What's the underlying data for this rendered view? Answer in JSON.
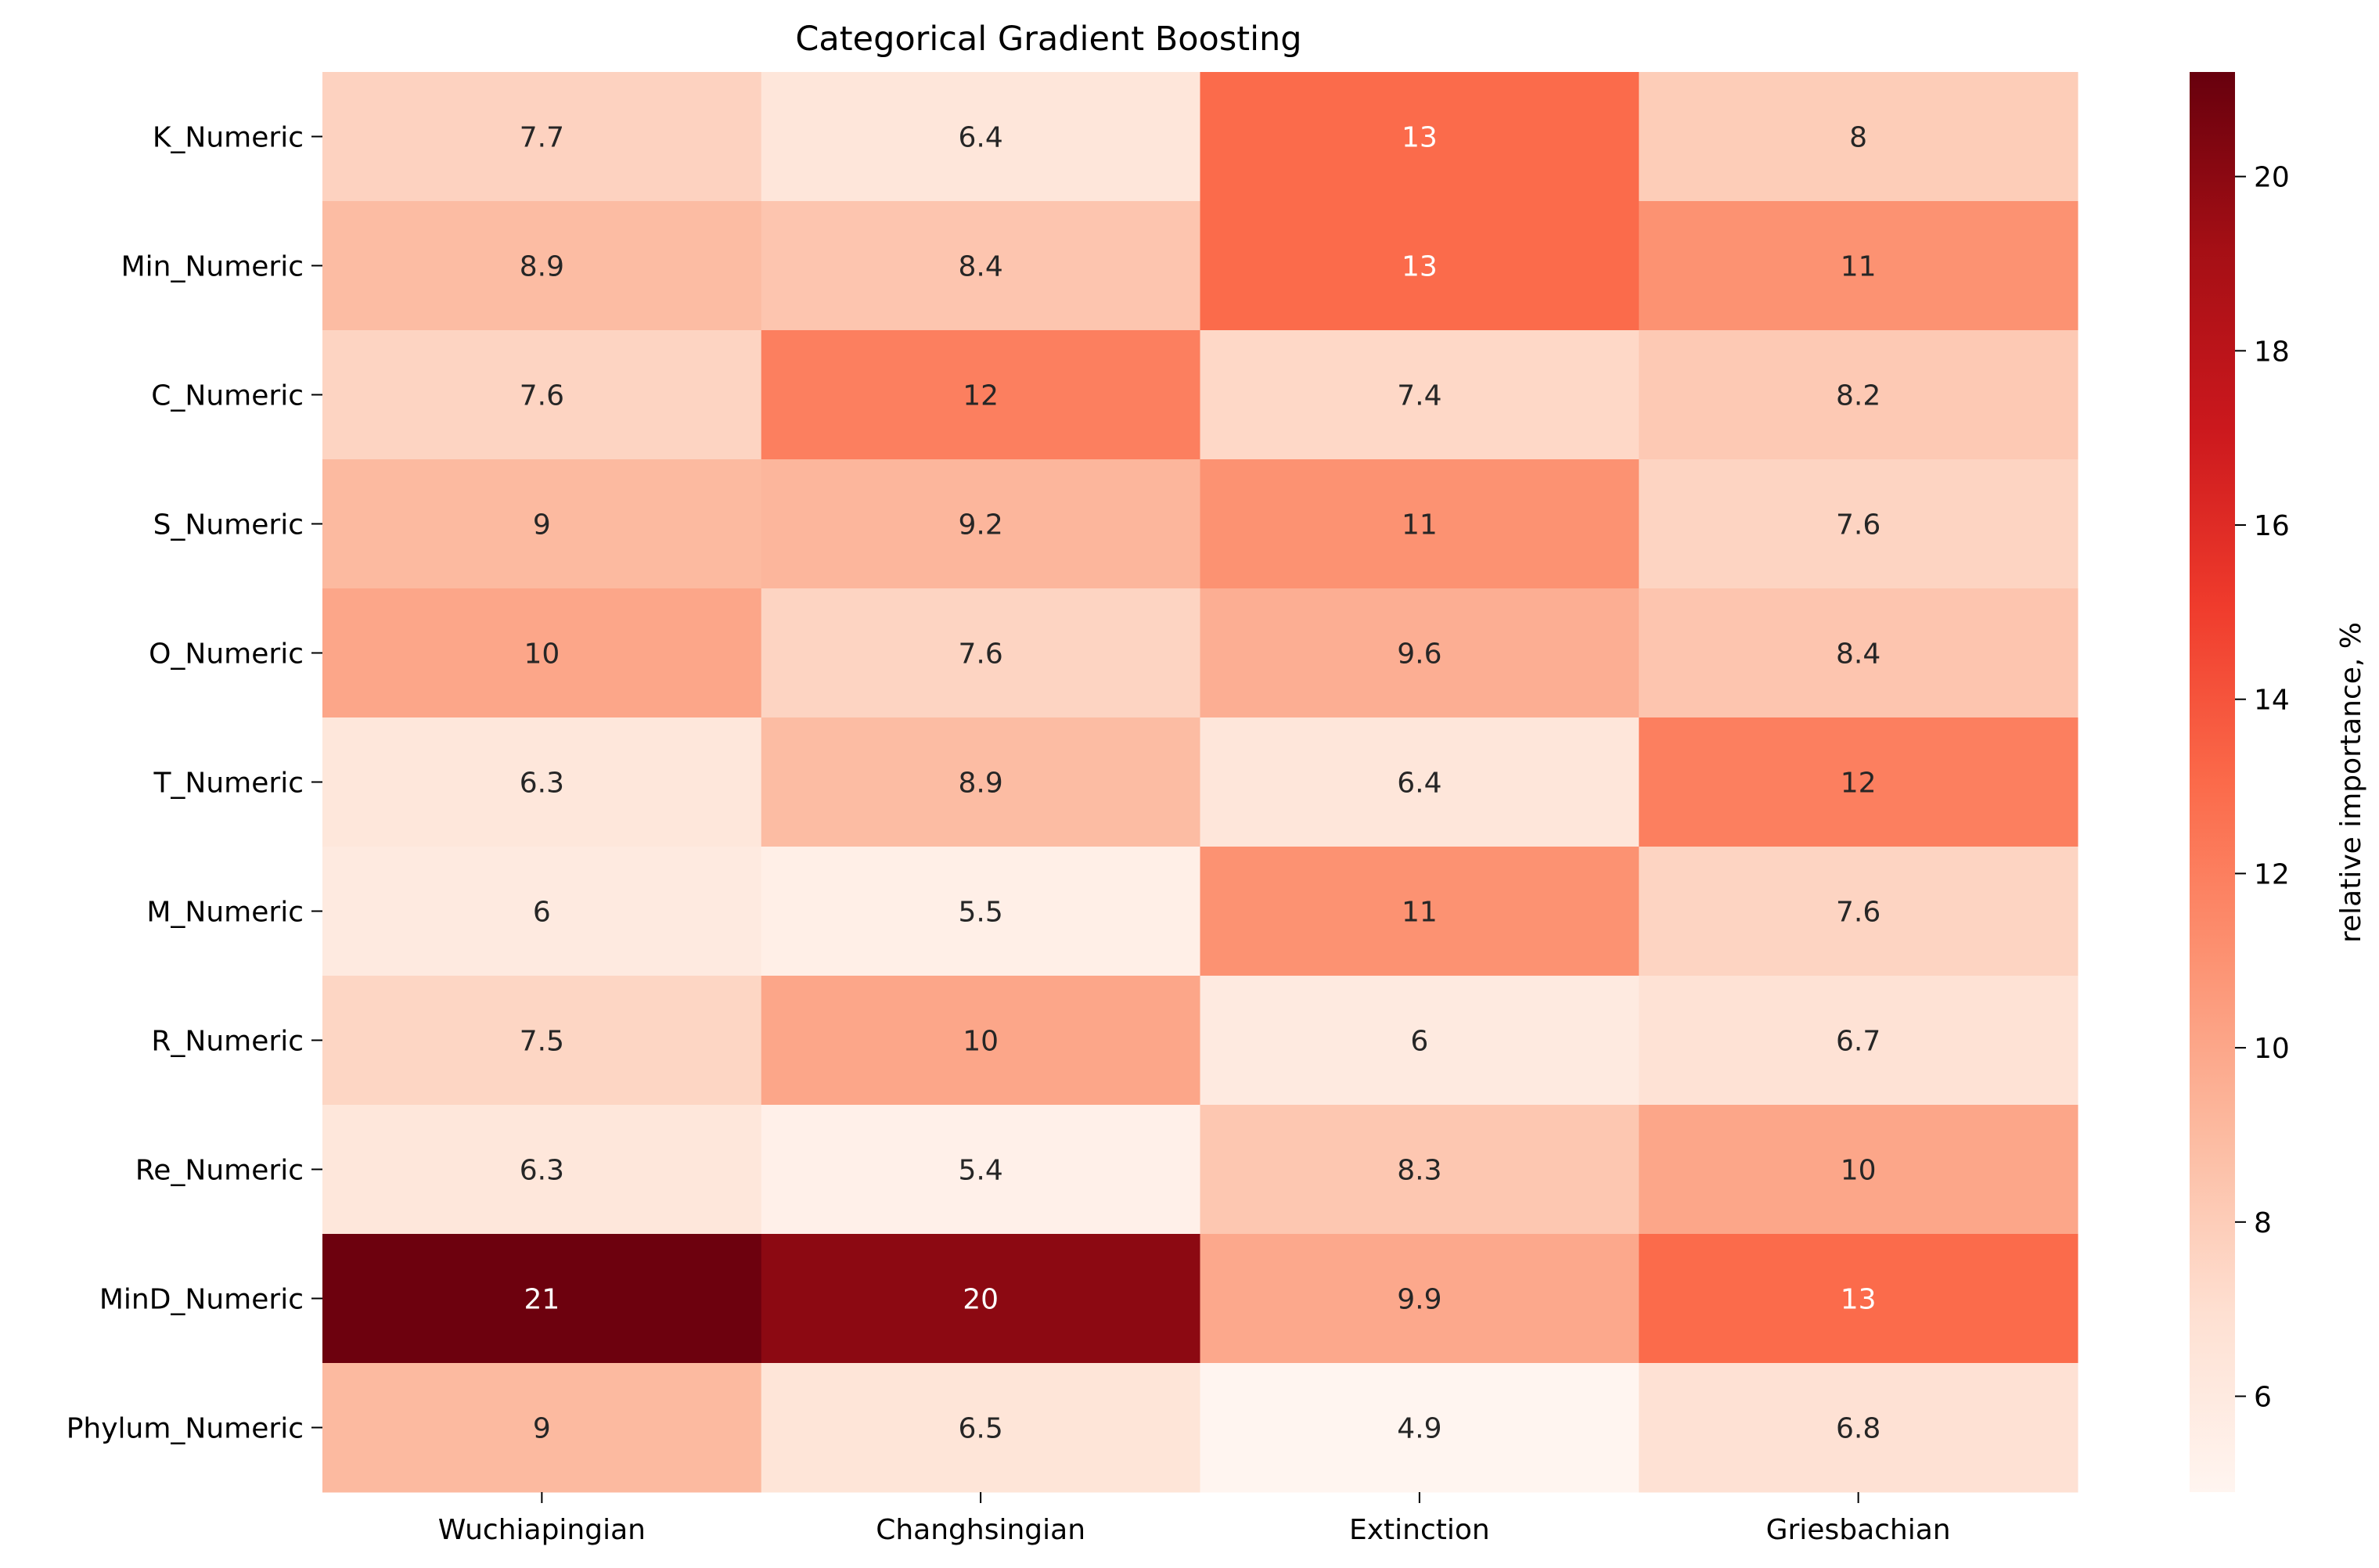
{
  "chart_data": {
    "type": "heatmap",
    "title": "Categorical Gradient Boosting",
    "xlabel": "",
    "ylabel": "",
    "columns": [
      "Wuchiapingian",
      "Changhsingian",
      "Extinction",
      "Griesbachian"
    ],
    "rows": [
      "K_Numeric",
      "Min_Numeric",
      "C_Numeric",
      "S_Numeric",
      "O_Numeric",
      "T_Numeric",
      "M_Numeric",
      "R_Numeric",
      "Re_Numeric",
      "MinD_Numeric",
      "Phylum_Numeric"
    ],
    "values": [
      [
        7.7,
        6.4,
        13,
        8
      ],
      [
        8.9,
        8.4,
        13,
        11
      ],
      [
        7.6,
        12,
        7.4,
        8.2
      ],
      [
        9,
        9.2,
        11,
        7.6
      ],
      [
        10,
        7.6,
        9.6,
        8.4
      ],
      [
        6.3,
        8.9,
        6.4,
        12
      ],
      [
        6,
        5.5,
        11,
        7.6
      ],
      [
        7.5,
        10,
        6,
        6.7
      ],
      [
        6.3,
        5.4,
        8.3,
        10
      ],
      [
        21,
        20,
        9.9,
        13
      ],
      [
        9,
        6.5,
        4.9,
        6.8
      ]
    ],
    "colorbar": {
      "label": "relative importance, %",
      "min": 4.9,
      "max": 21.2,
      "ticks": [
        6,
        8,
        10,
        12,
        14,
        16,
        18,
        20
      ],
      "colormap": "Reds",
      "colormap_stops": [
        "#fff5f0",
        "#fee0d2",
        "#fcbba1",
        "#fc9272",
        "#fb6a4a",
        "#ef3b2c",
        "#cb181d",
        "#a50f15",
        "#67000d"
      ]
    }
  }
}
